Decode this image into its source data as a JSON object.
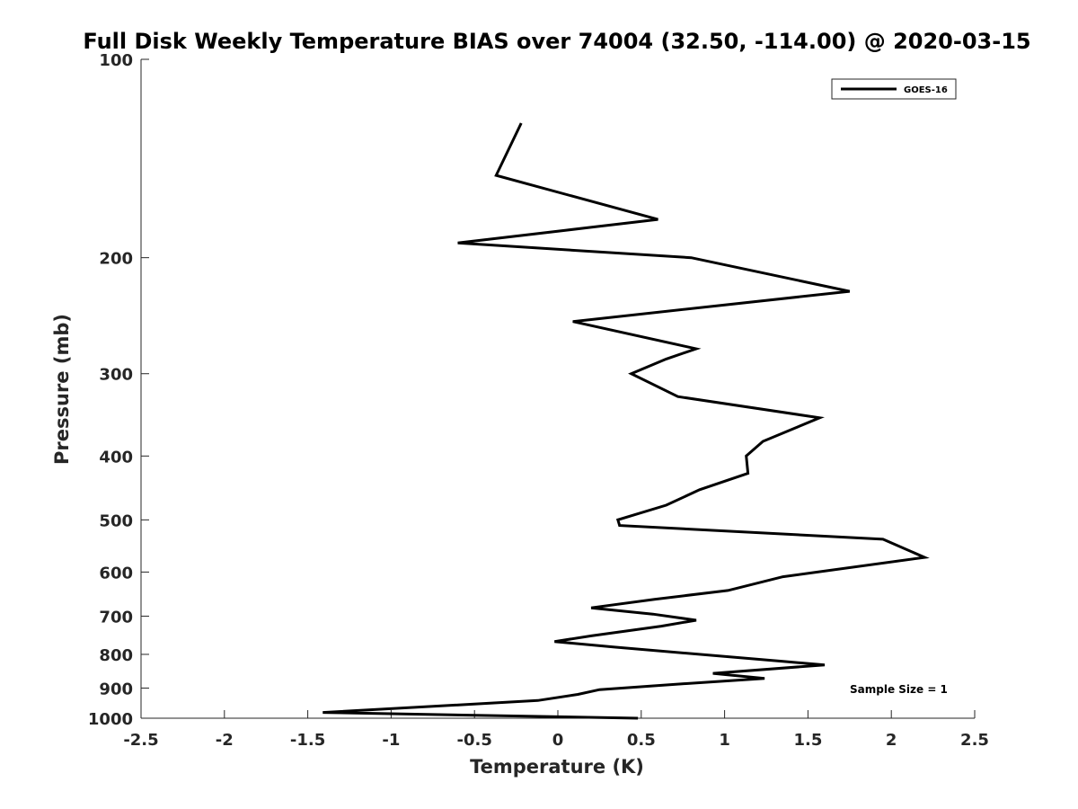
{
  "chart_data": {
    "type": "line",
    "title": "Full Disk Weekly Temperature BIAS over 74004 (32.50, -114.00) @ 2020-03-15",
    "xlabel": "Temperature (K)",
    "ylabel": "Pressure (mb)",
    "xlim": [
      -2.5,
      2.5
    ],
    "ylim": [
      100,
      1000
    ],
    "y_scale": "log",
    "y_reversed": true,
    "x_ticks": [
      "-2.5",
      "-2",
      "-1.5",
      "-1",
      "-0.5",
      "0",
      "0.5",
      "1",
      "1.5",
      "2",
      "2.5"
    ],
    "y_ticks": [
      "100",
      "200",
      "300",
      "400",
      "500",
      "600",
      "700",
      "800",
      "900",
      "1000"
    ],
    "grid": false,
    "legend_position": "top-right",
    "annotation": "Sample Size = 1",
    "series": [
      {
        "name": "GOES-16",
        "color": "#000000",
        "points": [
          {
            "x": -0.22,
            "y": 125
          },
          {
            "x": -0.37,
            "y": 150
          },
          {
            "x": 0.6,
            "y": 175
          },
          {
            "x": -0.6,
            "y": 190
          },
          {
            "x": 0.8,
            "y": 200
          },
          {
            "x": 1.75,
            "y": 225
          },
          {
            "x": 0.09,
            "y": 250
          },
          {
            "x": 0.83,
            "y": 275
          },
          {
            "x": 0.65,
            "y": 285
          },
          {
            "x": 0.44,
            "y": 300
          },
          {
            "x": 0.72,
            "y": 325
          },
          {
            "x": 1.57,
            "y": 350
          },
          {
            "x": 1.23,
            "y": 380
          },
          {
            "x": 1.13,
            "y": 400
          },
          {
            "x": 1.14,
            "y": 425
          },
          {
            "x": 0.85,
            "y": 450
          },
          {
            "x": 0.65,
            "y": 475
          },
          {
            "x": 0.36,
            "y": 500
          },
          {
            "x": 0.37,
            "y": 510
          },
          {
            "x": 1.95,
            "y": 535
          },
          {
            "x": 2.2,
            "y": 570
          },
          {
            "x": 1.35,
            "y": 610
          },
          {
            "x": 1.02,
            "y": 640
          },
          {
            "x": 0.58,
            "y": 660
          },
          {
            "x": 0.2,
            "y": 680
          },
          {
            "x": 0.57,
            "y": 695
          },
          {
            "x": 0.83,
            "y": 710
          },
          {
            "x": 0.62,
            "y": 725
          },
          {
            "x": 0.2,
            "y": 750
          },
          {
            "x": -0.02,
            "y": 765
          },
          {
            "x": 0.34,
            "y": 780
          },
          {
            "x": 1.35,
            "y": 820
          },
          {
            "x": 1.6,
            "y": 830
          },
          {
            "x": 0.93,
            "y": 855
          },
          {
            "x": 1.24,
            "y": 870
          },
          {
            "x": 0.8,
            "y": 885
          },
          {
            "x": 0.25,
            "y": 905
          },
          {
            "x": 0.12,
            "y": 920
          },
          {
            "x": -0.12,
            "y": 940
          },
          {
            "x": -1.41,
            "y": 980
          },
          {
            "x": 0.48,
            "y": 1000
          }
        ]
      }
    ]
  }
}
